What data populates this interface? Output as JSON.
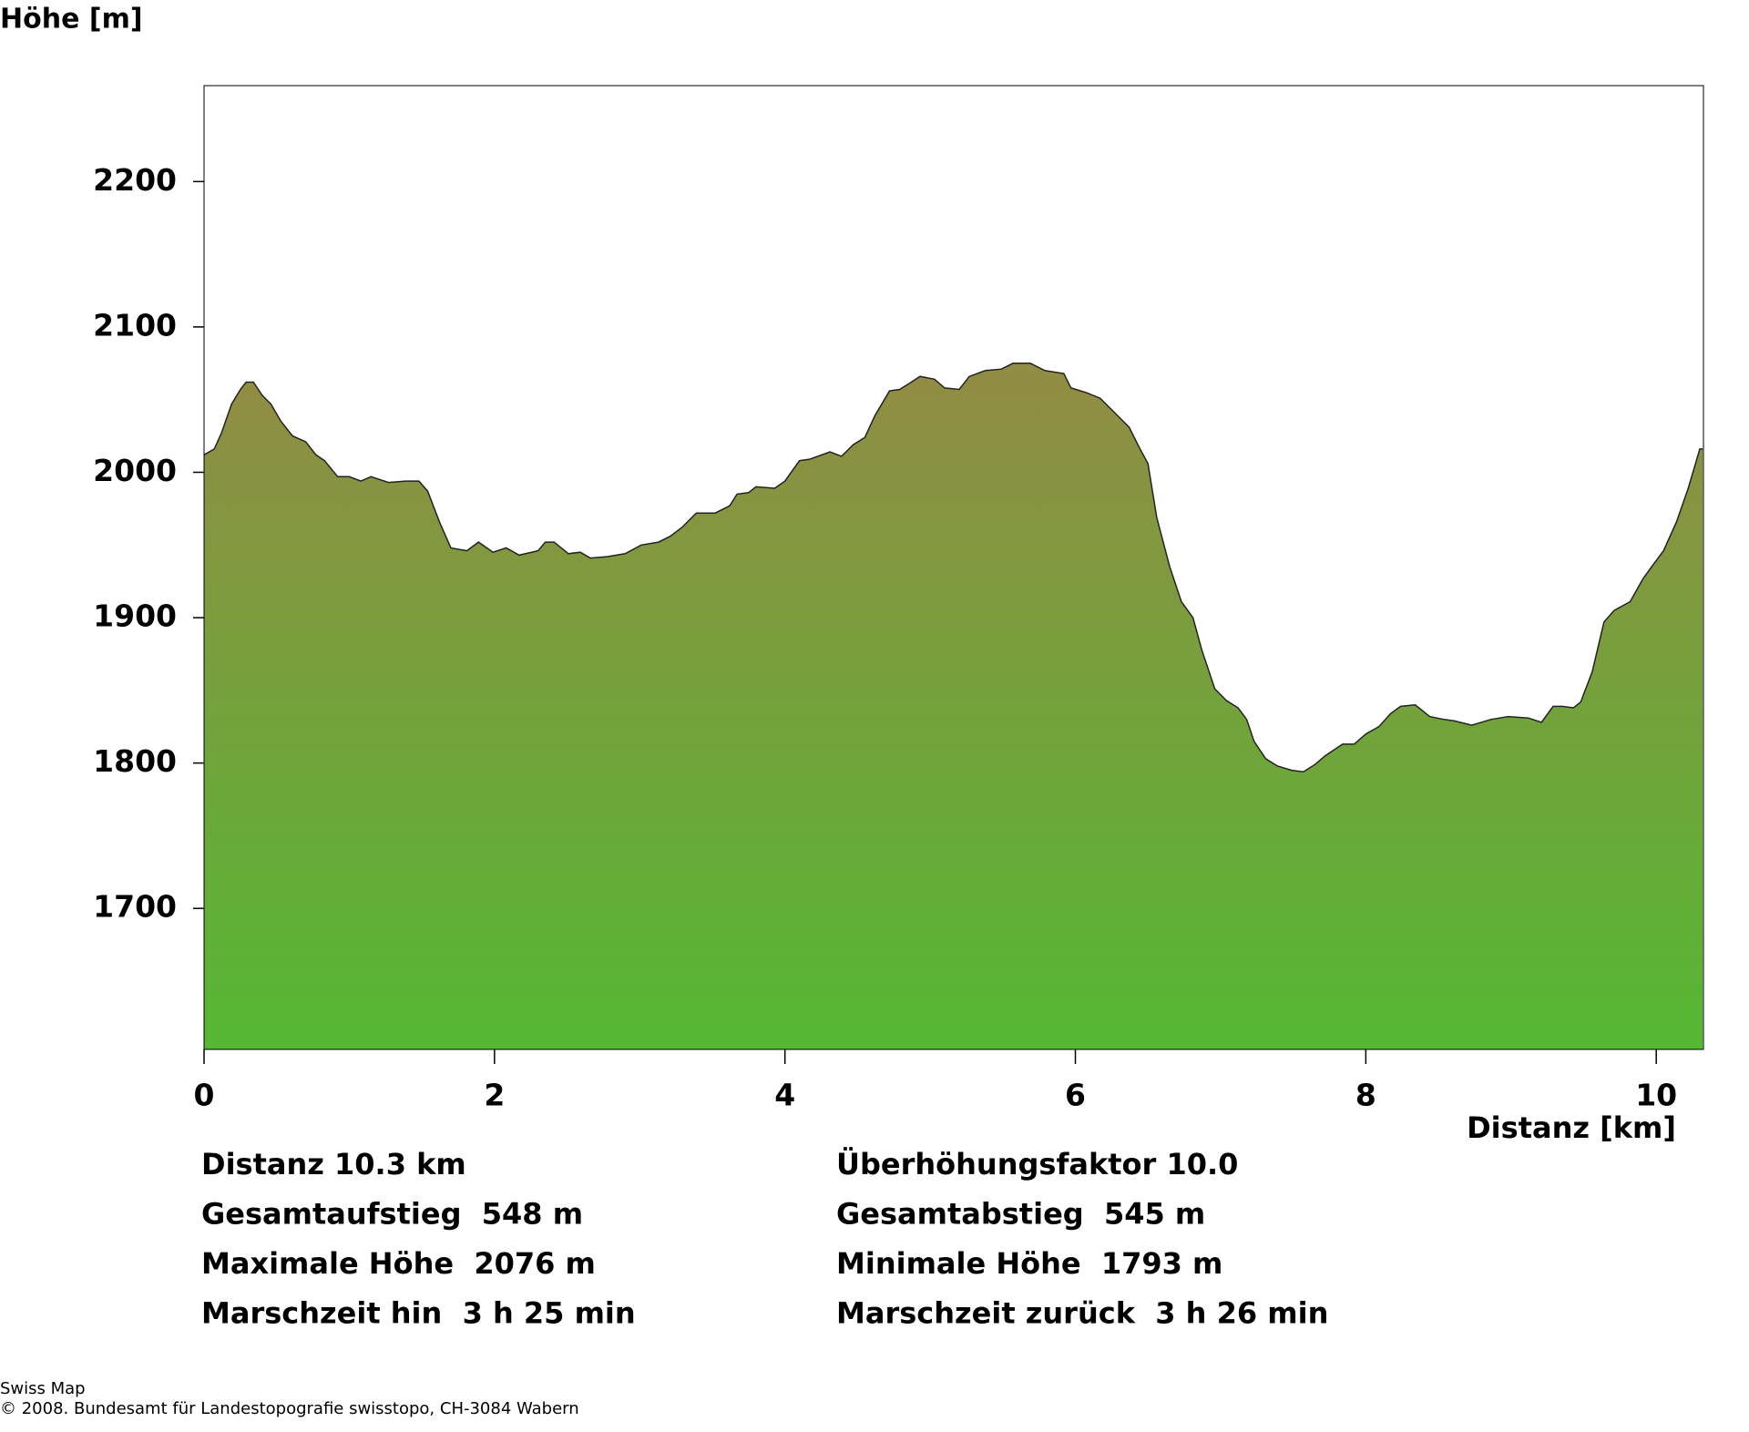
{
  "chart_data": {
    "type": "area",
    "y_label": "Höhe [m]",
    "x_label": "Distanz [km]",
    "x": [
      0,
      0.07,
      0.12,
      0.19,
      0.25,
      0.29,
      0.34,
      0.4,
      0.46,
      0.53,
      0.61,
      0.7,
      0.77,
      0.83,
      0.92,
      1.0,
      1.08,
      1.15,
      1.27,
      1.39,
      1.48,
      1.54,
      1.62,
      1.7,
      1.81,
      1.89,
      1.99,
      2.08,
      2.17,
      2.3,
      2.35,
      2.41,
      2.51,
      2.59,
      2.66,
      2.78,
      2.9,
      3.01,
      3.13,
      3.21,
      3.29,
      3.39,
      3.52,
      3.62,
      3.67,
      3.75,
      3.8,
      3.93,
      4.0,
      4.1,
      4.17,
      4.31,
      4.39,
      4.47,
      4.55,
      4.62,
      4.72,
      4.79,
      4.87,
      4.93,
      5.03,
      5.1,
      5.2,
      5.27,
      5.38,
      5.49,
      5.57,
      5.69,
      5.79,
      5.92,
      5.97,
      6.07,
      6.17,
      6.27,
      6.37,
      6.44,
      6.5,
      6.56,
      6.65,
      6.73,
      6.81,
      6.87,
      6.96,
      7.04,
      7.12,
      7.18,
      7.23,
      7.31,
      7.39,
      7.49,
      7.57,
      7.65,
      7.72,
      7.84,
      7.92,
      8.0,
      8.09,
      8.17,
      8.24,
      8.34,
      8.44,
      8.54,
      8.61,
      8.73,
      8.86,
      8.98,
      9.12,
      9.21,
      9.29,
      9.35,
      9.43,
      9.48,
      9.56,
      9.64,
      9.71,
      9.82,
      9.91,
      9.99,
      10.05,
      10.14,
      10.22,
      10.3,
      10.32
    ],
    "values": [
      2012,
      2016,
      2027,
      2047,
      2057,
      2062,
      2062,
      2053,
      2047,
      2035,
      2025,
      2021,
      2012,
      2008,
      1997,
      1997,
      1994,
      1997,
      1993,
      1994,
      1994,
      1987,
      1966,
      1948,
      1946,
      1952,
      1945,
      1948,
      1943,
      1946,
      1952,
      1952,
      1944,
      1945,
      1941,
      1942,
      1944,
      1950,
      1952,
      1956,
      1962,
      1972,
      1972,
      1977,
      1985,
      1986,
      1990,
      1989,
      1994,
      2008,
      2009,
      2014,
      2011,
      2019,
      2024,
      2039,
      2056,
      2057,
      2062,
      2066,
      2064,
      2058,
      2057,
      2066,
      2070,
      2071,
      2075,
      2075,
      2070,
      2068,
      2058,
      2055,
      2051,
      2041,
      2031,
      2017,
      2006,
      1969,
      1935,
      1911,
      1900,
      1878,
      1851,
      1843,
      1838,
      1830,
      1815,
      1803,
      1798,
      1795,
      1794,
      1799,
      1805,
      1813,
      1813,
      1820,
      1825,
      1834,
      1839,
      1840,
      1832,
      1830,
      1829,
      1826,
      1830,
      1832,
      1831,
      1828,
      1839,
      1839,
      1838,
      1842,
      1863,
      1897,
      1905,
      1911,
      1927,
      1938,
      1946,
      1966,
      1989,
      2016,
      2016
    ],
    "gradient": [
      "#9a8646",
      "#55b833"
    ],
    "xlim": [
      0,
      10.325
    ],
    "ylim": [
      1603,
      2266
    ],
    "xticks": [
      0,
      2,
      4,
      6,
      8,
      10
    ],
    "yticks": [
      1700,
      1800,
      1900,
      2000,
      2100,
      2200
    ],
    "annotations": [
      [
        "Distanz 10.3 km",
        "Überhöhungsfaktor 10.0"
      ],
      [
        "Gesamtaufstieg  548 m",
        "Gesamtabstieg  545 m"
      ],
      [
        "Maximale Höhe  2076 m",
        "Minimale Höhe  1793 m"
      ],
      [
        "Marschzeit hin  3 h 25 min",
        "Marschzeit zurück  3 h 26 min"
      ]
    ],
    "source": "Swiss Map",
    "copyright": "© 2008. Bundesamt für Landestopografie swisstopo, CH-3084 Wabern"
  }
}
